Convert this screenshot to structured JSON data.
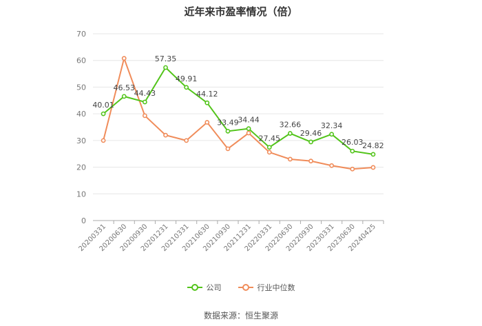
{
  "chart_data": {
    "type": "line",
    "title": "近年来市盈率情况（倍）",
    "categories": [
      "20200331",
      "20200630",
      "20200930",
      "20201231",
      "20210331",
      "20210630",
      "20210930",
      "20211231",
      "20220331",
      "20220630",
      "20220930",
      "20230331",
      "20230630",
      "20240425"
    ],
    "series": [
      {
        "name": "公司",
        "color": "#52c41a",
        "values": [
          40.01,
          46.53,
          44.43,
          57.35,
          49.91,
          44.12,
          33.49,
          34.44,
          27.45,
          32.66,
          29.46,
          32.34,
          26.03,
          24.82
        ],
        "show_labels": true
      },
      {
        "name": "行业中位数",
        "color": "#f08c5a",
        "values": [
          30.0,
          60.8,
          39.3,
          32.0,
          30.0,
          36.8,
          26.9,
          32.8,
          25.6,
          23.0,
          22.3,
          20.6,
          19.3,
          19.9
        ],
        "show_labels": false
      }
    ],
    "ylim": [
      0,
      70
    ],
    "yticks": [
      0,
      10,
      20,
      30,
      40,
      50,
      60,
      70
    ],
    "grid": true,
    "legend_position": "bottom"
  },
  "source_text": "数据来源：恒生聚源"
}
